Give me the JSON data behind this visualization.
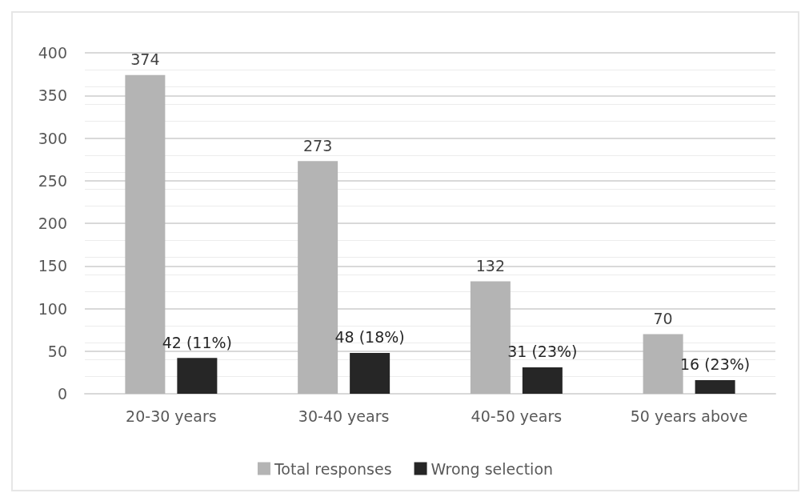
{
  "chart_data": {
    "type": "bar",
    "categories": [
      "20-30 years",
      "30-40 years",
      "40-50 years",
      "50 years above"
    ],
    "series": [
      {
        "name": "Total responses",
        "color": "#b4b4b4",
        "values": [
          374,
          273,
          132,
          70
        ],
        "value_labels": [
          "374",
          "273",
          "132",
          "70"
        ]
      },
      {
        "name": "Wrong selection",
        "color": "#262626",
        "values": [
          42,
          48,
          31,
          16
        ],
        "value_labels": [
          "42 (11%)",
          "48 (18%)",
          "31 (23%)",
          "16 (23%)"
        ]
      }
    ],
    "ylim": [
      0,
      400
    ],
    "yticks": [
      0,
      50,
      100,
      150,
      200,
      250,
      300,
      350,
      400
    ],
    "grid": "y",
    "legend": "bottom"
  }
}
